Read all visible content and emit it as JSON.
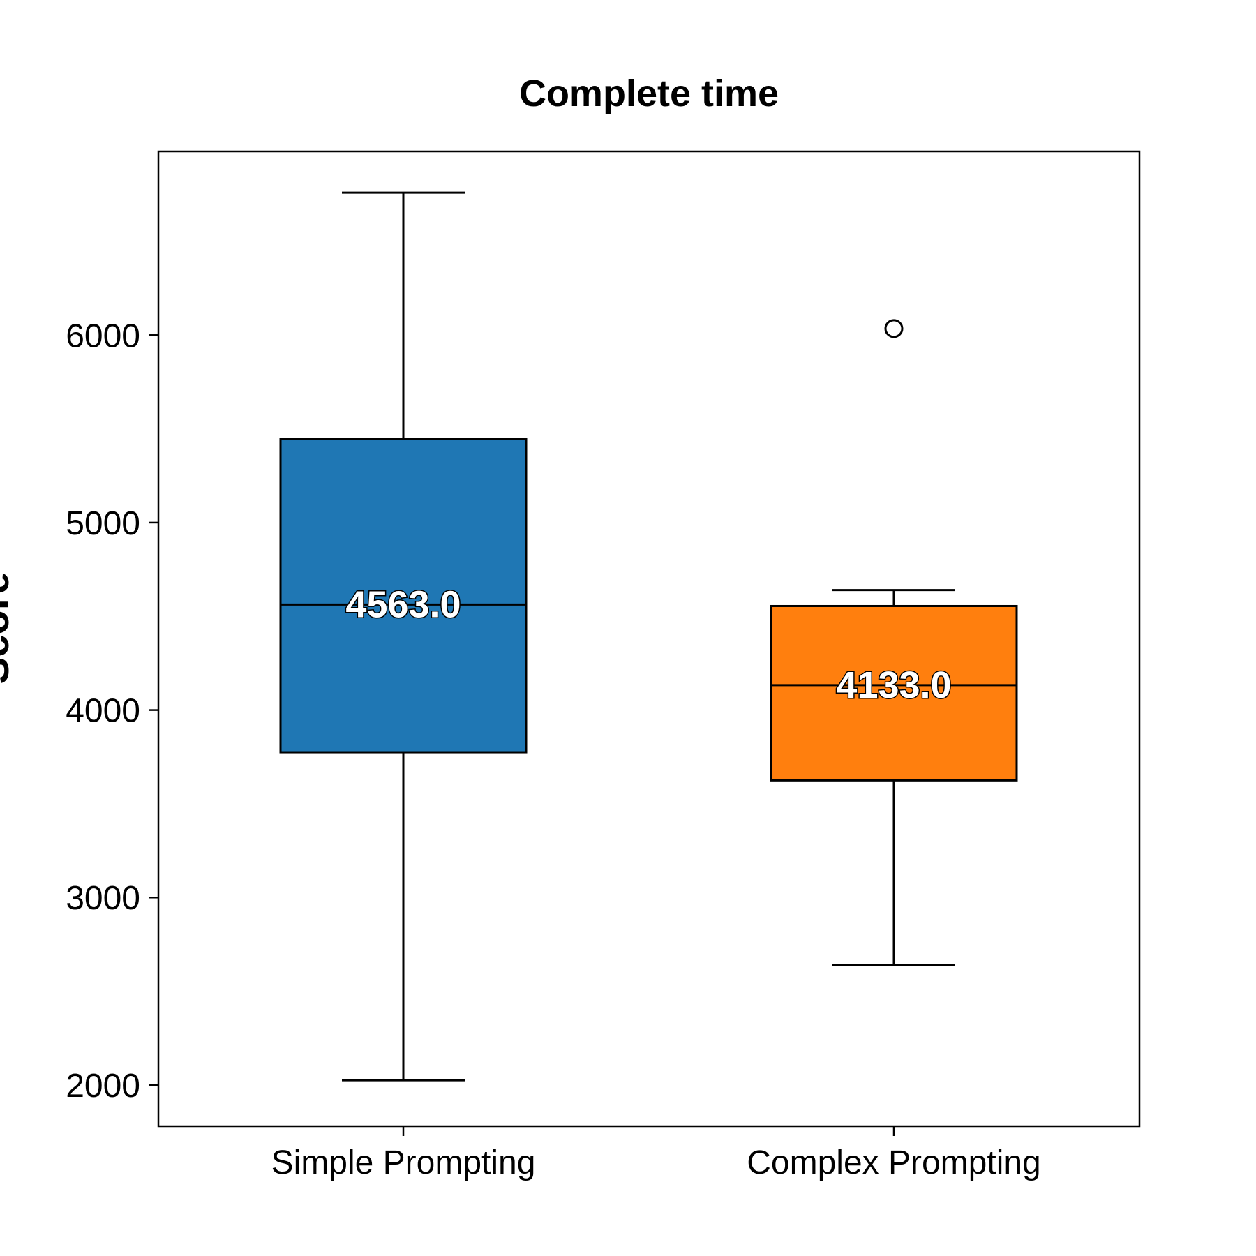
{
  "chart_data": {
    "type": "box",
    "title": "Complete time",
    "ylabel": "Score",
    "xlabel": "",
    "ylim": [
      1780,
      6980
    ],
    "yticks": [
      2000,
      3000,
      4000,
      5000,
      6000
    ],
    "ytick_labels": [
      "2000",
      "3000",
      "4000",
      "5000",
      "6000"
    ],
    "grid": false,
    "categories": [
      "Simple Prompting",
      "Complex Prompting"
    ],
    "series": [
      {
        "category": "Simple Prompting",
        "color": "#1f77b4",
        "whisker_low": 2025,
        "q1": 3775,
        "median": 4563.0,
        "q3": 5445,
        "whisker_high": 6760,
        "outliers": [],
        "median_label": "4563.0"
      },
      {
        "category": "Complex Prompting",
        "color": "#ff7f0e",
        "whisker_low": 2640,
        "q1": 3625,
        "median": 4133.0,
        "q3": 4555,
        "whisker_high": 4640,
        "outliers": [
          6035
        ],
        "median_label": "4133.0"
      }
    ]
  }
}
